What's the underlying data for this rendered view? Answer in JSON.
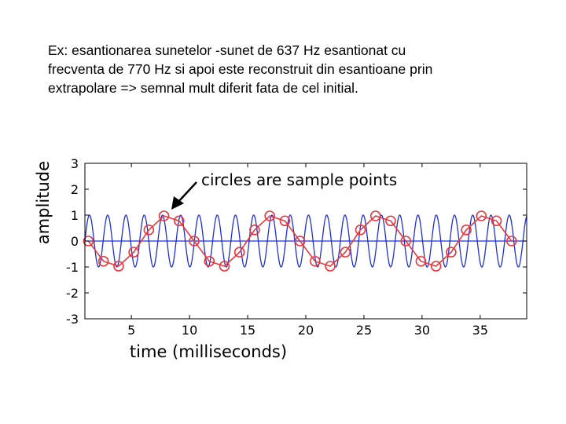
{
  "slide": {
    "lines": [
      "Ex: esantionarea sunetelor -sunet de 637 Hz esantionat cu",
      "frecventa de 770 Hz si apoi este reconstruit din esantioane prin",
      "extrapolare => semnal mult diferit fata de cel initial."
    ]
  },
  "chart_data": {
    "type": "line",
    "xlabel": "time (milliseconds)",
    "ylabel": "amplitude",
    "annotation": "circles are sample points",
    "xlim": [
      1,
      39
    ],
    "ylim": [
      -3,
      3
    ],
    "xticks": [
      5,
      10,
      15,
      20,
      25,
      30,
      35
    ],
    "yticks": [
      3,
      2,
      1,
      0,
      -1,
      -2,
      -3
    ],
    "grid": false,
    "series": [
      {
        "kind": "continuous-sine",
        "frequency_hz": 637,
        "amplitude": 1,
        "color": "#1f2fd6"
      },
      {
        "kind": "sampled",
        "color": "#e8383d",
        "x": [
          1.3,
          2.6,
          3.9,
          5.2,
          6.5,
          7.8,
          9.1,
          10.4,
          11.7,
          13.0,
          14.3,
          15.6,
          16.9,
          18.2,
          19.5,
          20.8,
          22.1,
          23.4,
          24.7,
          26.0,
          27.3,
          28.6,
          29.9,
          31.2,
          32.5,
          33.8,
          35.1,
          36.4,
          37.7
        ],
        "y": [
          0.0,
          -0.78,
          -0.97,
          -0.43,
          0.43,
          0.97,
          0.78,
          0.0,
          -0.78,
          -0.97,
          -0.43,
          0.43,
          0.97,
          0.78,
          0.0,
          -0.78,
          -0.97,
          -0.43,
          0.43,
          0.97,
          0.78,
          0.0,
          -0.78,
          -0.97,
          -0.43,
          0.43,
          0.97,
          0.78,
          0.0
        ]
      }
    ]
  }
}
